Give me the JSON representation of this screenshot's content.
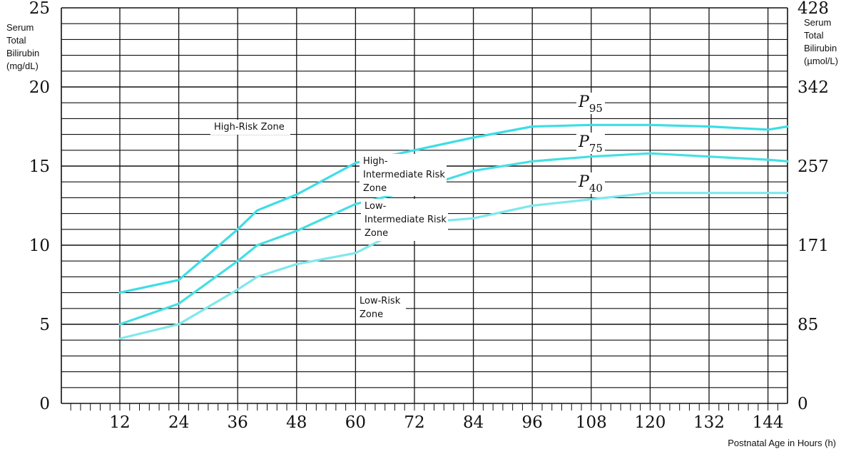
{
  "chart_data": {
    "type": "line",
    "x_label": "Postnatal Age in Hours (h)",
    "y_left_label": [
      "Serum",
      "Total",
      "Bilirubin",
      "(mg/dL)"
    ],
    "y_right_label": [
      "Serum",
      "Total",
      "Bilirubin",
      "(µmol/L)"
    ],
    "x_ticks": [
      12,
      24,
      36,
      48,
      60,
      72,
      84,
      96,
      108,
      120,
      132,
      144
    ],
    "y_left_ticks": [
      0,
      5,
      10,
      15,
      20,
      25
    ],
    "y_right_ticks": [
      "0",
      "85",
      "171",
      "257",
      "342",
      "428"
    ],
    "xlim": [
      0,
      148
    ],
    "ylim": [
      0,
      25
    ],
    "grid": true,
    "series": [
      {
        "name": "P95",
        "color": "#3ddde6",
        "x": [
          12,
          24,
          36,
          40,
          48,
          60,
          72,
          84,
          96,
          108,
          120,
          132,
          144,
          148
        ],
        "y": [
          7.0,
          7.8,
          11.0,
          12.2,
          13.2,
          15.2,
          16.0,
          16.8,
          17.5,
          17.6,
          17.6,
          17.5,
          17.3,
          17.5
        ]
      },
      {
        "name": "P75",
        "color": "#45dfe3",
        "x": [
          12,
          24,
          36,
          40,
          48,
          60,
          72,
          84,
          96,
          108,
          120,
          132,
          144,
          148
        ],
        "y": [
          5.0,
          6.3,
          9.0,
          10.0,
          10.9,
          12.6,
          13.5,
          14.7,
          15.3,
          15.6,
          15.8,
          15.6,
          15.4,
          15.3
        ]
      },
      {
        "name": "P40",
        "color": "#7ee8ec",
        "x": [
          12,
          24,
          36,
          40,
          48,
          60,
          72,
          84,
          96,
          108,
          120,
          132,
          144,
          148
        ],
        "y": [
          4.1,
          5.0,
          7.2,
          8.0,
          8.8,
          9.5,
          11.4,
          11.7,
          12.5,
          12.9,
          13.3,
          13.3,
          13.3,
          13.3
        ]
      }
    ],
    "curve_labels": [
      {
        "main": "P",
        "sub": "95"
      },
      {
        "main": "P",
        "sub": "75"
      },
      {
        "main": "P",
        "sub": "40"
      }
    ],
    "zones": [
      {
        "name": "High-Risk Zone",
        "lines": [
          "High-Risk Zone"
        ]
      },
      {
        "name": "High-Intermediate Risk Zone",
        "lines": [
          "High-",
          "Intermediate Risk",
          "Zone"
        ]
      },
      {
        "name": "Low-Intermediate Risk Zone",
        "lines": [
          "Low-",
          "Intermediate Risk",
          "Zone"
        ]
      },
      {
        "name": "Low-Risk Zone",
        "lines": [
          "Low-Risk",
          "Zone"
        ]
      }
    ]
  }
}
